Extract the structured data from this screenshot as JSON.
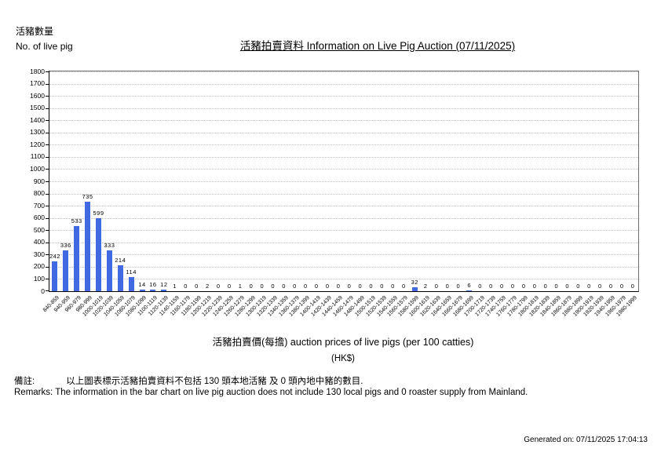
{
  "header": {
    "y_axis_caption_zh": "活豬數量",
    "y_axis_caption_en": "No. of live pig"
  },
  "chart_data": {
    "type": "bar",
    "title": "活豬拍賣資料 Information on Live Pig Auction (07/11/2025)",
    "xlabel": "活豬拍賣價(每擔) auction prices of live pigs (per 100 catties)",
    "xlabel_unit": "(HK$)",
    "ylabel_zh": "活豬數量",
    "ylabel_en": "No. of live pig",
    "ylim": [
      0,
      1800
    ],
    "ytick_step": 100,
    "grid": true,
    "legend": "none",
    "bar_color": "#4169E1",
    "categories": [
      "840-859",
      "940-959",
      "960-979",
      "980-999",
      "1000-1019",
      "1020-1039",
      "1040-1059",
      "1060-1079",
      "1080-1099",
      "1100-1119",
      "1120-1139",
      "1140-1159",
      "1160-1179",
      "1180-1199",
      "1200-1219",
      "1220-1239",
      "1240-1259",
      "1260-1279",
      "1280-1299",
      "1300-1319",
      "1320-1339",
      "1340-1359",
      "1360-1379",
      "1380-1399",
      "1400-1419",
      "1420-1439",
      "1440-1459",
      "1460-1479",
      "1480-1499",
      "1500-1519",
      "1520-1539",
      "1540-1559",
      "1560-1579",
      "1580-1599",
      "1600-1619",
      "1620-1639",
      "1640-1659",
      "1660-1679",
      "1680-1699",
      "1700-1719",
      "1720-1739",
      "1740-1759",
      "1760-1779",
      "1780-1799",
      "1800-1819",
      "1820-1839",
      "1840-1859",
      "1860-1879",
      "1880-1899",
      "1900-1919",
      "1920-1939",
      "1940-1959",
      "1960-1979",
      "1980-1999"
    ],
    "values": [
      242,
      336,
      533,
      735,
      599,
      333,
      214,
      114,
      14,
      16,
      12,
      1,
      0,
      0,
      2,
      0,
      0,
      1,
      0,
      0,
      0,
      0,
      0,
      0,
      0,
      0,
      0,
      0,
      0,
      0,
      0,
      0,
      0,
      32,
      2,
      0,
      0,
      0,
      6,
      0,
      0,
      0,
      0,
      0,
      0,
      0,
      0,
      0,
      0,
      0,
      0,
      0,
      0,
      0
    ]
  },
  "remarks": {
    "zh_label": "備註:",
    "zh_text": "以上圖表標示活豬拍賣資料不包括 130 頭本地活豬 及 0 頭內地中豬的數目.",
    "en_text": "Remarks: The information in the bar chart on live pig auction does not include 130 local pigs and 0 roaster supply from Mainland."
  },
  "footer": {
    "generated_on": "Generated on: 07/11/2025 17:04:13"
  }
}
